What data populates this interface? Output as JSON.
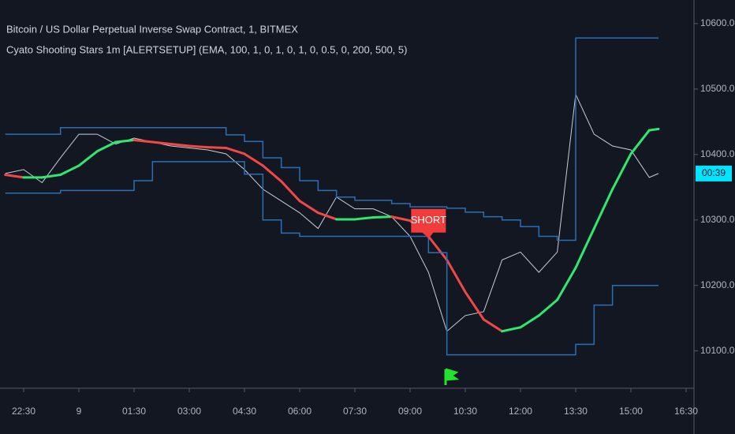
{
  "chart_data": {
    "type": "line",
    "title": "Bitcoin / US Dollar Perpetual Inverse Swap Contract, 1, BITMEX",
    "subtitle": "Cyato Shooting Stars 1m [ALERTSETUP] (EMA, 100, 1, 0, 1, 0, 1, 0, 0.5, 0, 200, 500, 5)",
    "x": [
      1320,
      1350,
      1380,
      1410,
      1440,
      1470,
      1500,
      1530,
      1560,
      1590,
      1620,
      1650,
      1680,
      1710,
      1740,
      1770,
      1800,
      1830,
      1860,
      1890,
      1920,
      1950,
      1980,
      2010,
      2040,
      2070,
      2100,
      2130,
      2160,
      2190,
      2220,
      2250,
      2280,
      2310,
      2340,
      2370,
      2385
    ],
    "series": [
      {
        "role": "price",
        "color": "#c8cdd6",
        "values": [
          10371,
          10377,
          10357,
          10395,
          10431,
          10431,
          10416,
          10425,
          10419,
          10413,
          10410,
          10407,
          10401,
          10377,
          10347,
          10329,
          10311,
          10287,
          10335,
          10317,
          10317,
          10305,
          10275,
          10220,
          10130,
          10154,
          10160,
          10239,
          10251,
          10220,
          10251,
          10492,
          10431,
          10413,
          10407,
          10365,
          10371
        ]
      },
      {
        "role": "ema",
        "up_color": "#2ee86f",
        "down_color": "#f04848",
        "values": [
          10369,
          10365,
          10365,
          10369,
          10383,
          10405,
          10419,
          10422,
          10419,
          10416,
          10413,
          10411,
          10410,
          10401,
          10383,
          10359,
          10329,
          10311,
          10301,
          10301,
          10304,
          10305,
          10299,
          10275,
          10239,
          10190,
          10148,
          10130,
          10136,
          10154,
          10178,
          10227,
          10287,
          10347,
          10401,
          10437,
          10439
        ]
      },
      {
        "role": "band",
        "step": true,
        "color": "#2a6fb5",
        "values": [
          10431,
          10431,
          10431,
          10441,
          10441,
          10441,
          10441,
          10441,
          10441,
          10441,
          10441,
          10441,
          10430,
          10420,
          10395,
          10380,
          10360,
          10345,
          10335,
          10330,
          10330,
          10325,
          10320,
          10320,
          10318,
          10312,
          10305,
          10300,
          10290,
          10275,
          10269,
          10578,
          10578,
          10578,
          10578,
          10578,
          10578
        ]
      },
      {
        "role": "band",
        "step": true,
        "color": "#2a6fb5",
        "values": [
          10341,
          10341,
          10341,
          10345,
          10345,
          10345,
          10345,
          10360,
          10389,
          10389,
          10389,
          10389,
          10389,
          10370,
          10300,
          10280,
          10275,
          10275,
          10275,
          10275,
          10275,
          10275,
          10275,
          10250,
          10094,
          10094,
          10094,
          10094,
          10094,
          10094,
          10094,
          10110,
          10170,
          10200,
          10200,
          10200,
          10200
        ]
      }
    ],
    "xlim": [
      1311.4,
      2442.9
    ],
    "ylim": [
      10043,
      10636
    ],
    "xticks": [
      {
        "value": 1350,
        "label": "22:30"
      },
      {
        "value": 1440,
        "label": "9"
      },
      {
        "value": 1530,
        "label": "01:30"
      },
      {
        "value": 1620,
        "label": "03:00"
      },
      {
        "value": 1710,
        "label": "04:30"
      },
      {
        "value": 1800,
        "label": "06:00"
      },
      {
        "value": 1890,
        "label": "07:30"
      },
      {
        "value": 1980,
        "label": "09:00"
      },
      {
        "value": 2070,
        "label": "10:30"
      },
      {
        "value": 2160,
        "label": "12:00"
      },
      {
        "value": 2250,
        "label": "13:30"
      },
      {
        "value": 2340,
        "label": "15:00"
      },
      {
        "value": 2430,
        "label": "16:30"
      }
    ],
    "yticks": [
      {
        "value": 10100,
        "label": "10100.0"
      },
      {
        "value": 10200,
        "label": "10200.0"
      },
      {
        "value": 10300,
        "label": "10300.0"
      },
      {
        "value": 10400,
        "label": "10400.0"
      },
      {
        "value": 10500,
        "label": "10500.0"
      },
      {
        "value": 10600,
        "label": "10600.0"
      }
    ],
    "price_label": "00:39",
    "annotation": {
      "text": "SHORT",
      "x": 2010,
      "y": 10300,
      "color": "#f23b3b"
    }
  }
}
